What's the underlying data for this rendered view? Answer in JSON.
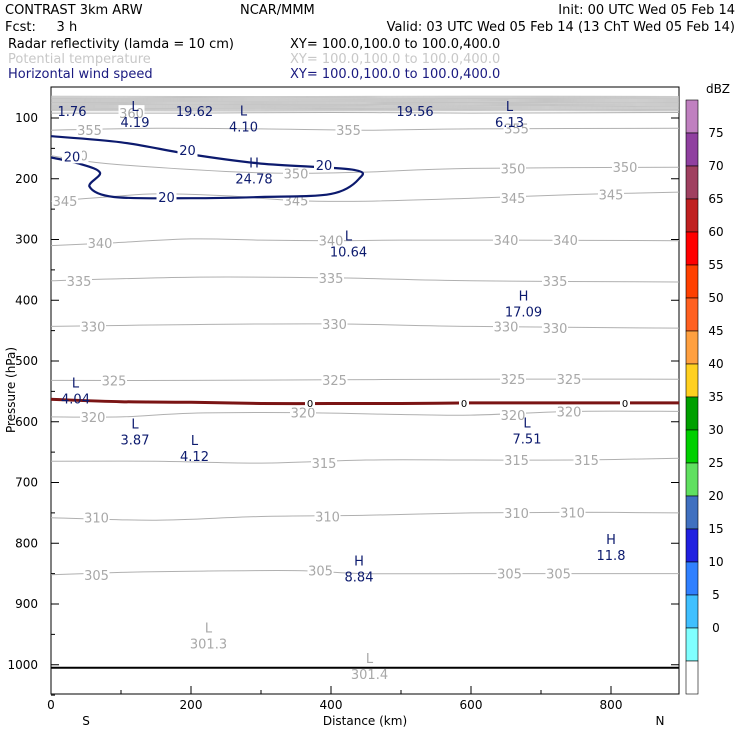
{
  "header": {
    "left_line1": "CONTRAST  3km ARW",
    "center_line1": "NCAR/MMM",
    "right_line1": "Init: 00 UTC Wed 05 Feb 14",
    "left_line2": "Fcst:     3 h",
    "right_line2": "Valid: 03 UTC Wed 05 Feb 14 (13 ChT Wed 05 Feb 14)",
    "fields": [
      {
        "name": "Radar reflectivity (lamda = 10 cm)",
        "xy": "XY= 100.0,100.0 to 100.0,400.0",
        "color": "#000000"
      },
      {
        "name": "Potential temperature",
        "xy": "XY= 100.0,100.0 to 100.0,400.0",
        "color": "#c8c8c8"
      },
      {
        "name": "Horizontal wind speed",
        "xy": "XY= 100.0,100.0 to 100.0,400.0",
        "color": "#1a1a80"
      }
    ]
  },
  "colorbar": {
    "unit": "dBZ",
    "ticks": [
      "75",
      "70",
      "65",
      "60",
      "55",
      "50",
      "45",
      "40",
      "35",
      "30",
      "25",
      "20",
      "15",
      "10",
      "5",
      "0"
    ],
    "colors": [
      "#c080c0",
      "#9040a0",
      "#a04060",
      "#c02020",
      "#ff0000",
      "#ff4000",
      "#ff6020",
      "#ffa040",
      "#ffd020",
      "#00a000",
      "#00d000",
      "#60e060",
      "#4070c0",
      "#2020e0",
      "#3080ff",
      "#40c0ff",
      "#80ffff",
      "#ffffff"
    ]
  },
  "chart_data": {
    "type": "contour-cross-section",
    "xlabel": "Distance (km)",
    "ylabel": "Pressure (hPa)",
    "xlim": [
      0,
      900
    ],
    "ylim": [
      1050,
      60
    ],
    "x_ticks": [
      "0",
      "200",
      "400",
      "600",
      "800"
    ],
    "y_ticks": [
      "100",
      "200",
      "300",
      "400",
      "500",
      "600",
      "700",
      "800",
      "900",
      "1000"
    ],
    "x_end_labels": {
      "left": "S",
      "right": "N"
    },
    "theta_contours": [
      {
        "label": "360",
        "points": [
          [
            0,
            92
          ],
          [
            200,
            92
          ],
          [
            400,
            91
          ],
          [
            600,
            92
          ],
          [
            900,
            91
          ]
        ]
      },
      {
        "label": "355",
        "points": [
          [
            0,
            120
          ],
          [
            150,
            117
          ],
          [
            300,
            118
          ],
          [
            450,
            120
          ],
          [
            600,
            118
          ],
          [
            900,
            117
          ]
        ]
      },
      {
        "label": "350",
        "points": [
          [
            0,
            162
          ],
          [
            80,
            175
          ],
          [
            250,
            188
          ],
          [
            350,
            191
          ],
          [
            450,
            189
          ],
          [
            600,
            183
          ],
          [
            900,
            181
          ]
        ]
      },
      {
        "label": "345",
        "points": [
          [
            0,
            237
          ],
          [
            80,
            230
          ],
          [
            150,
            225
          ],
          [
            250,
            228
          ],
          [
            350,
            236
          ],
          [
            450,
            237
          ],
          [
            600,
            232
          ],
          [
            750,
            226
          ],
          [
            900,
            222
          ]
        ]
      },
      {
        "label": "340",
        "points": [
          [
            0,
            310
          ],
          [
            80,
            306
          ],
          [
            200,
            299
          ],
          [
            300,
            301
          ],
          [
            400,
            302
          ],
          [
            500,
            301
          ],
          [
            650,
            301
          ],
          [
            900,
            302
          ]
        ]
      },
      {
        "label": "335",
        "points": [
          [
            0,
            368
          ],
          [
            200,
            362
          ],
          [
            400,
            363
          ],
          [
            600,
            368
          ],
          [
            900,
            370
          ]
        ]
      },
      {
        "label": "330",
        "points": [
          [
            0,
            443
          ],
          [
            200,
            440
          ],
          [
            400,
            439
          ],
          [
            600,
            443
          ],
          [
            900,
            446
          ]
        ]
      },
      {
        "label": "325",
        "points": [
          [
            0,
            532
          ],
          [
            200,
            532
          ],
          [
            400,
            531
          ],
          [
            600,
            530
          ],
          [
            900,
            530
          ]
        ]
      },
      {
        "label": "320",
        "points": [
          [
            0,
            592
          ],
          [
            100,
            592
          ],
          [
            200,
            586
          ],
          [
            350,
            585
          ],
          [
            500,
            588
          ],
          [
            600,
            589
          ],
          [
            750,
            583
          ],
          [
            900,
            583
          ]
        ]
      },
      {
        "label": "315",
        "points": [
          [
            0,
            665
          ],
          [
            150,
            665
          ],
          [
            300,
            668
          ],
          [
            450,
            663
          ],
          [
            600,
            663
          ],
          [
            750,
            663
          ],
          [
            900,
            660
          ]
        ]
      },
      {
        "label": "310",
        "points": [
          [
            0,
            758
          ],
          [
            150,
            762
          ],
          [
            300,
            756
          ],
          [
            450,
            754
          ],
          [
            600,
            750
          ],
          [
            750,
            749
          ],
          [
            900,
            750
          ]
        ]
      },
      {
        "label": "305",
        "points": [
          [
            0,
            852
          ],
          [
            100,
            848
          ],
          [
            200,
            846
          ],
          [
            350,
            845
          ],
          [
            450,
            850
          ],
          [
            600,
            850
          ],
          [
            750,
            850
          ],
          [
            900,
            850
          ]
        ]
      }
    ],
    "theta_line_labels": [
      {
        "text": "360",
        "x": 115,
        "p": 92
      },
      {
        "text": "355",
        "x": 55,
        "p": 120
      },
      {
        "text": "355",
        "x": 425,
        "p": 120
      },
      {
        "text": "355",
        "x": 665,
        "p": 117
      },
      {
        "text": "350",
        "x": 35,
        "p": 162
      },
      {
        "text": "350",
        "x": 350,
        "p": 191
      },
      {
        "text": "350",
        "x": 660,
        "p": 183
      },
      {
        "text": "350",
        "x": 820,
        "p": 181
      },
      {
        "text": "345",
        "x": 20,
        "p": 237
      },
      {
        "text": "345",
        "x": 350,
        "p": 236
      },
      {
        "text": "345",
        "x": 660,
        "p": 232
      },
      {
        "text": "345",
        "x": 800,
        "p": 226
      },
      {
        "text": "340",
        "x": 70,
        "p": 306
      },
      {
        "text": "340",
        "x": 400,
        "p": 302
      },
      {
        "text": "340",
        "x": 650,
        "p": 301
      },
      {
        "text": "340",
        "x": 735,
        "p": 301
      },
      {
        "text": "335",
        "x": 40,
        "p": 368
      },
      {
        "text": "335",
        "x": 400,
        "p": 363
      },
      {
        "text": "335",
        "x": 720,
        "p": 368
      },
      {
        "text": "330",
        "x": 60,
        "p": 443
      },
      {
        "text": "330",
        "x": 405,
        "p": 439
      },
      {
        "text": "330",
        "x": 650,
        "p": 443
      },
      {
        "text": "330",
        "x": 720,
        "p": 446
      },
      {
        "text": "325",
        "x": 90,
        "p": 532
      },
      {
        "text": "325",
        "x": 405,
        "p": 531
      },
      {
        "text": "325",
        "x": 660,
        "p": 530
      },
      {
        "text": "325",
        "x": 740,
        "p": 530
      },
      {
        "text": "320",
        "x": 60,
        "p": 592
      },
      {
        "text": "320",
        "x": 360,
        "p": 585
      },
      {
        "text": "320",
        "x": 660,
        "p": 589
      },
      {
        "text": "320",
        "x": 740,
        "p": 583
      },
      {
        "text": "315",
        "x": 390,
        "p": 668
      },
      {
        "text": "315",
        "x": 665,
        "p": 663
      },
      {
        "text": "315",
        "x": 765,
        "p": 663
      },
      {
        "text": "310",
        "x": 65,
        "p": 758
      },
      {
        "text": "310",
        "x": 395,
        "p": 756
      },
      {
        "text": "310",
        "x": 665,
        "p": 750
      },
      {
        "text": "310",
        "x": 745,
        "p": 749
      },
      {
        "text": "305",
        "x": 65,
        "p": 852
      },
      {
        "text": "305",
        "x": 385,
        "p": 845
      },
      {
        "text": "305",
        "x": 655,
        "p": 850
      },
      {
        "text": "305",
        "x": 725,
        "p": 850
      }
    ],
    "theta_extrema": [
      {
        "kind": "L",
        "value": "301.3",
        "x": 225,
        "p": 960
      },
      {
        "kind": "L",
        "value": "301.4",
        "x": 455,
        "p": 1010
      }
    ],
    "wind_contours": [
      {
        "label": "20",
        "points": [
          [
            0,
            130
          ],
          [
            100,
            140
          ],
          [
            200,
            160
          ],
          [
            300,
            175
          ],
          [
            430,
            185
          ],
          [
            440,
            200
          ],
          [
            400,
            225
          ],
          [
            300,
            230
          ],
          [
            200,
            232
          ],
          [
            90,
            230
          ],
          [
            55,
            213
          ],
          [
            70,
            190
          ],
          [
            40,
            175
          ],
          [
            0,
            165
          ]
        ]
      }
    ],
    "wind_line_labels": [
      {
        "text": "20",
        "x": 30,
        "p": 163
      },
      {
        "text": "20",
        "x": 195,
        "p": 153
      },
      {
        "text": "20",
        "x": 390,
        "p": 177
      },
      {
        "text": "20",
        "x": 165,
        "p": 230
      }
    ],
    "wind_extrema": [
      {
        "kind": "",
        "value": "1.76",
        "x": 30,
        "p": 82
      },
      {
        "kind": "L",
        "value": "4.19",
        "x": 120,
        "p": 100
      },
      {
        "kind": "",
        "value": "19.62",
        "x": 205,
        "p": 82
      },
      {
        "kind": "L",
        "value": "4.10",
        "x": 275,
        "p": 107
      },
      {
        "kind": "",
        "value": "19.56",
        "x": 520,
        "p": 82
      },
      {
        "kind": "L",
        "value": "6.13",
        "x": 655,
        "p": 100
      },
      {
        "kind": "H",
        "value": "24.78",
        "x": 290,
        "p": 193
      },
      {
        "kind": "L",
        "value": "10.64",
        "x": 425,
        "p": 313
      },
      {
        "kind": "H",
        "value": "17.09",
        "x": 675,
        "p": 412
      },
      {
        "kind": "L",
        "value": "4.04",
        "x": 35,
        "p": 555
      },
      {
        "kind": "L",
        "value": "3.87",
        "x": 120,
        "p": 623
      },
      {
        "kind": "L",
        "value": "4.12",
        "x": 205,
        "p": 650
      },
      {
        "kind": "L",
        "value": "7.51",
        "x": 680,
        "p": 621
      },
      {
        "kind": "H",
        "value": "8.84",
        "x": 440,
        "p": 848
      },
      {
        "kind": "H",
        "value": "11.8",
        "x": 800,
        "p": 813
      }
    ],
    "reflectivity_line": {
      "label": "0",
      "points": [
        [
          0,
          563
        ],
        [
          100,
          567
        ],
        [
          200,
          568
        ],
        [
          300,
          570
        ],
        [
          400,
          570
        ],
        [
          500,
          570
        ],
        [
          600,
          569
        ],
        [
          700,
          569
        ],
        [
          800,
          569
        ],
        [
          900,
          569
        ]
      ],
      "label_x": [
        370,
        590,
        820
      ],
      "color": "#7a1414"
    },
    "surface_pressure": [
      [
        0,
        1005
      ],
      [
        900,
        1005
      ]
    ]
  }
}
